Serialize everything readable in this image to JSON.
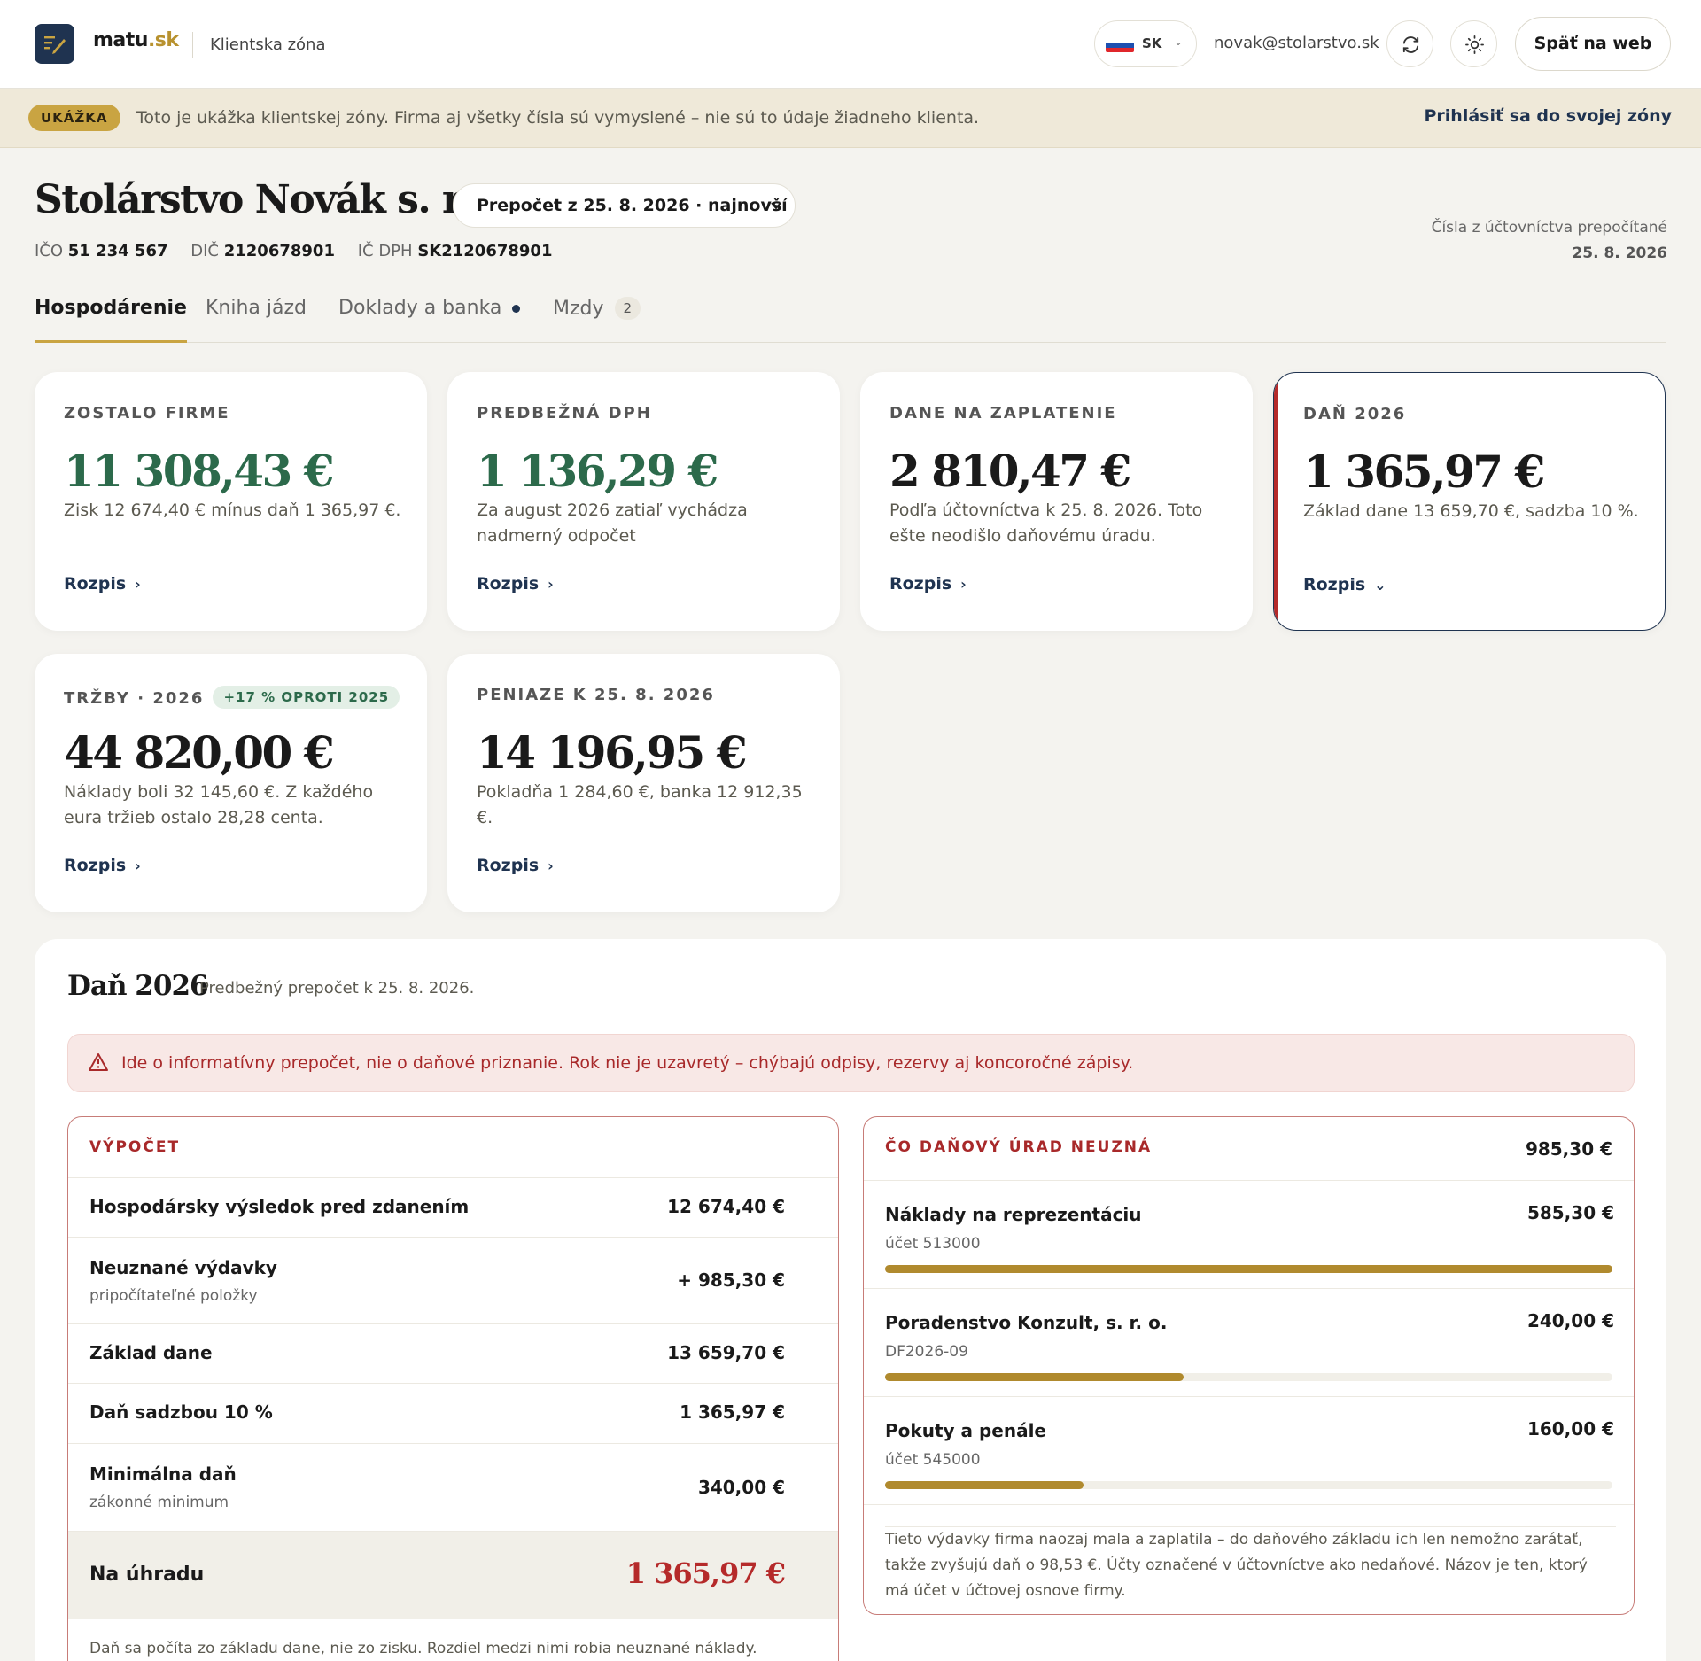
{
  "header": {
    "brand_main": "matu",
    "brand_dot": ".sk",
    "zone_label": "Klientska zóna",
    "lang_code": "SK",
    "user_email": "novak@stolarstvo.sk",
    "back_button": "Späť na web",
    "icons": [
      "logo-icon",
      "flag-sk-icon",
      "chevron-down-icon",
      "refresh-icon",
      "sun-icon"
    ]
  },
  "banner": {
    "badge": "UKÁŽKA",
    "text": "Toto je ukážka klientskej zóny. Firma aj všetky čísla sú vymyslené – nie sú to údaje žiadneho klienta.",
    "login_link": "Prihlásiť sa do svojej zóny"
  },
  "company": {
    "name": "Stolárstvo Novák s. r. o.",
    "recalc_select": "Prepočet z 25. 8. 2026 · najnovší",
    "ico_label": "IČO",
    "ico": "51 234 567",
    "dic_label": "DIČ",
    "dic": "2120678901",
    "icdph_label": "IČ DPH",
    "icdph": "SK2120678901",
    "recalc_note": "Čísla z účtovníctva prepočítané",
    "recalc_date": "25. 8. 2026"
  },
  "tabs": [
    {
      "label": "Hospodárenie",
      "active": true
    },
    {
      "label": "Kniha jázd"
    },
    {
      "label": "Doklady a banka",
      "dot": true
    },
    {
      "label": "Mzdy",
      "count": "2"
    }
  ],
  "cards": [
    {
      "label": "ZOSTALO FIRME",
      "value": "11 308,43 €",
      "desc": "Zisk 12 674,40 € mínus daň 1 365,97 €.",
      "link": "Rozpis",
      "color": "#2c6a4b"
    },
    {
      "label": "PREDBEŽNÁ DPH",
      "value": "1 136,29 €",
      "desc": "Za august 2026 zatiaľ vychádza nadmerný odpočet",
      "link": "Rozpis",
      "color": "#2c6a4b"
    },
    {
      "label": "DANE NA ZAPLATENIE",
      "value": "2 810,47 €",
      "desc": "Podľa účtovníctva k 25. 8. 2026. Toto ešte neodišlo daňovému úradu.",
      "link": "Rozpis"
    },
    {
      "label": "DAŇ 2026",
      "value": "1 365,97 €",
      "desc": "Základ dane 13 659,70 €, sadzba 10 %.",
      "link": "Rozpis",
      "selected": true
    },
    {
      "label": "TRŽBY · 2026",
      "pill": "+17 % OPROTI 2025",
      "value": "44 820,00 €",
      "desc": "Náklady boli 32 145,60 €. Z každého eura tržieb ostalo 28,28 centa.",
      "link": "Rozpis"
    },
    {
      "label": "PENIAZE K 25. 8. 2026",
      "value": "14 196,95 €",
      "desc": "Pokladňa 1 284,60 €, banka 12 912,35 €.",
      "link": "Rozpis"
    }
  ],
  "tax": {
    "title": "Daň 2026",
    "subtitle": "Predbežný prepočet k 25. 8. 2026.",
    "warning": "Ide o informatívny prepočet, nie o daňové priznanie. Rok nie je uzavretý – chýbajú odpisy, rezervy aj koncoročné zápisy.",
    "calc": {
      "heading": "VÝPOČET",
      "rows": [
        {
          "label": "Hospodársky výsledok pred zdanením",
          "value": "12 674,40 €"
        },
        {
          "label": "Neuznané výdavky",
          "sub": "pripočítateľné položky",
          "value": "+ 985,30 €"
        },
        {
          "label": "Základ dane",
          "value": "13 659,70 €"
        },
        {
          "label": "Daň sadzbou 10 %",
          "value": "1 365,97 €"
        },
        {
          "label": "Minimálna daň",
          "sub": "zákonné minimum",
          "value": "340,00 €"
        }
      ],
      "total_label": "Na úhradu",
      "total_value": "1 365,97 €",
      "footnote": "Daň sa počíta zo základu dane, nie zo zisku. Rozdiel medzi nimi robia neuznané náklady."
    },
    "denied": {
      "heading": "ČO DAŇOVÝ ÚRAD NEUZNÁ",
      "total": "985,30 €",
      "items": [
        {
          "label": "Náklady na reprezentáciu",
          "sub": "účet 513000",
          "value": "585,30 €",
          "share": 1.0
        },
        {
          "label": "Poradenstvo Konzult, s. r. o.",
          "sub": "DF2026-09",
          "value": "240,00 €",
          "share": 0.41
        },
        {
          "label": "Pokuty a penále",
          "sub": "účet 545000",
          "value": "160,00 €",
          "share": 0.273
        }
      ],
      "note": "Tieto výdavky firma naozaj mala a zaplatila – do daňového základu ich len nemožno zarátať, takže zvyšujú daň o 98,53 €. Účty označené v účtovníctve ako nedaňové. Názov je ten, ktorý má účet v účtovej osnove firmy."
    }
  },
  "colors": {
    "accent": "#c9a442",
    "navy": "#1f3350",
    "green": "#2c6a4b",
    "red": "#b52a2a"
  }
}
